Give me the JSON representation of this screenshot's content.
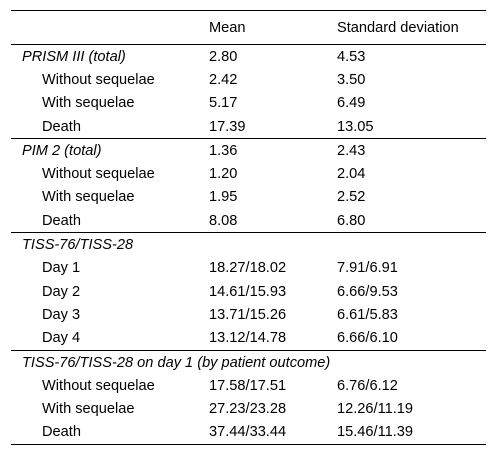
{
  "table": {
    "headers": [
      "",
      "Mean",
      "Standard deviation"
    ],
    "sections": [
      {
        "title": "PRISM III (total)",
        "mean": "2.80",
        "sd": "4.53",
        "rows": [
          {
            "label": "Without sequelae",
            "mean": "2.42",
            "sd": "3.50"
          },
          {
            "label": "With sequelae",
            "mean": "5.17",
            "sd": "6.49"
          },
          {
            "label": "Death",
            "mean": "17.39",
            "sd": "13.05"
          }
        ]
      },
      {
        "title": "PIM 2 (total)",
        "mean": "1.36",
        "sd": "2.43",
        "rows": [
          {
            "label": "Without sequelae",
            "mean": "1.20",
            "sd": "2.04"
          },
          {
            "label": "With sequelae",
            "mean": "1.95",
            "sd": "2.52"
          },
          {
            "label": "Death",
            "mean": "8.08",
            "sd": "6.80"
          }
        ]
      },
      {
        "title": "TISS-76/TISS-28",
        "mean": "",
        "sd": "",
        "rows": [
          {
            "label": "Day 1",
            "mean": "18.27/18.02",
            "sd": "7.91/6.91"
          },
          {
            "label": "Day 2",
            "mean": "14.61/15.93",
            "sd": "6.66/9.53"
          },
          {
            "label": "Day 3",
            "mean": "13.71/15.26",
            "sd": "6.61/5.83"
          },
          {
            "label": "Day 4",
            "mean": "13.12/14.78",
            "sd": "6.66/6.10"
          }
        ]
      },
      {
        "title": "TISS-76/TISS-28 on day 1 (by patient outcome)",
        "mean": "",
        "sd": "",
        "rows": [
          {
            "label": "Without sequelae",
            "mean": "17.58/17.51",
            "sd": "6.76/6.12"
          },
          {
            "label": "With sequelae",
            "mean": "27.23/23.28",
            "sd": "12.26/11.19"
          },
          {
            "label": "Death",
            "mean": "37.44/33.44",
            "sd": "15.46/11.39"
          }
        ]
      }
    ]
  }
}
